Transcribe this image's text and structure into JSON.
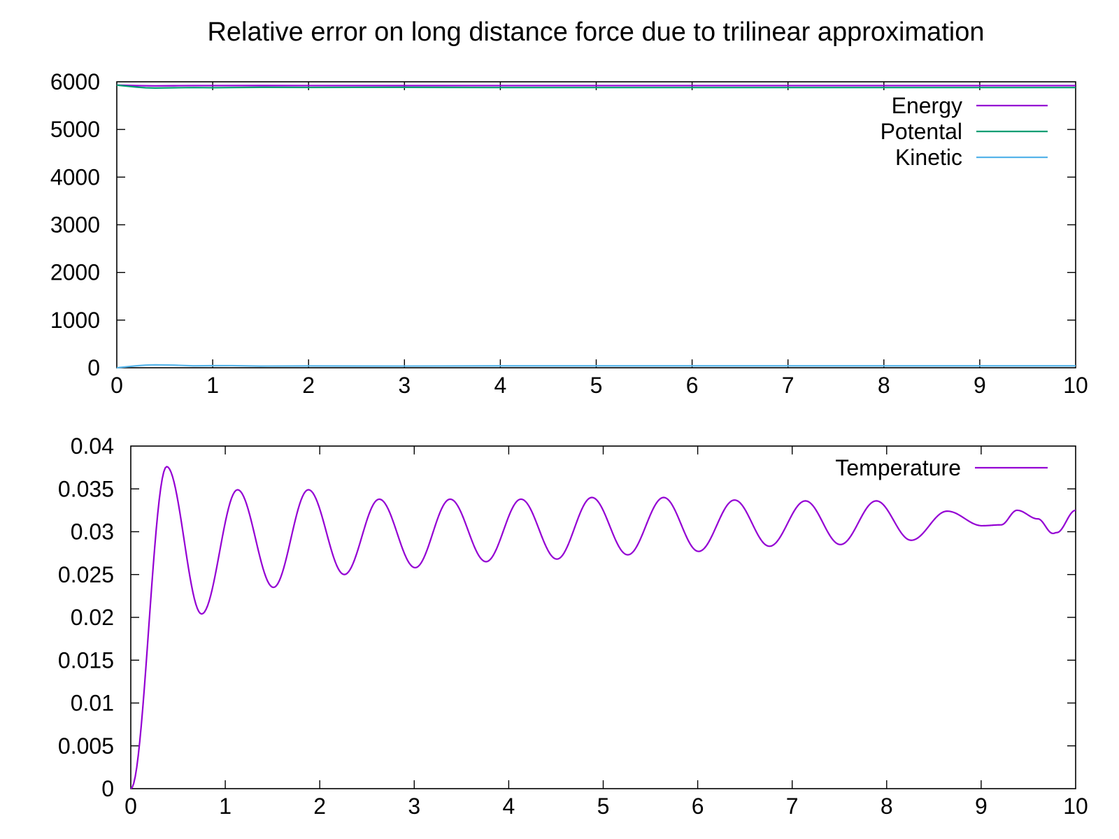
{
  "chart_data": [
    {
      "type": "line",
      "title": "Relative error on long distance force due to trilinear approximation",
      "xlabel": "",
      "ylabel": "",
      "xlim": [
        0,
        10
      ],
      "ylim": [
        0,
        6000
      ],
      "xticks": [
        0,
        1,
        2,
        3,
        4,
        5,
        6,
        7,
        8,
        9,
        10
      ],
      "yticks": [
        0,
        1000,
        2000,
        3000,
        4000,
        5000,
        6000
      ],
      "legend_position": "top-right",
      "grid": false,
      "series": [
        {
          "name": "Energy",
          "color": "#9400d3",
          "x": [
            0,
            0.2,
            0.4,
            0.6,
            0.8,
            1,
            1.5,
            2,
            3,
            4,
            5,
            6,
            7,
            8,
            9,
            10
          ],
          "y": [
            5930,
            5920,
            5915,
            5918,
            5920,
            5920,
            5921,
            5920,
            5920,
            5920,
            5920,
            5920,
            5920,
            5920,
            5920,
            5920
          ]
        },
        {
          "name": "Potental",
          "color": "#009e73",
          "x": [
            0,
            0.1,
            0.2,
            0.3,
            0.4,
            0.6,
            0.8,
            1,
            1.2,
            1.5,
            2,
            3,
            4,
            5,
            6,
            7,
            8,
            9,
            10
          ],
          "y": [
            5930,
            5910,
            5890,
            5875,
            5870,
            5875,
            5880,
            5876,
            5880,
            5885,
            5882,
            5885,
            5880,
            5880,
            5880,
            5880,
            5880,
            5880,
            5880
          ]
        },
        {
          "name": "Kinetic",
          "color": "#56b4e9",
          "x": [
            0,
            0.1,
            0.2,
            0.3,
            0.4,
            0.6,
            0.8,
            1,
            1.2,
            1.5,
            2,
            3,
            4,
            5,
            6,
            7,
            8,
            9,
            10
          ],
          "y": [
            0,
            20,
            40,
            55,
            60,
            55,
            40,
            44,
            45,
            35,
            38,
            36,
            40,
            40,
            40,
            40,
            40,
            40,
            40
          ]
        }
      ]
    },
    {
      "type": "line",
      "title": "",
      "xlabel": "",
      "ylabel": "",
      "xlim": [
        0,
        10
      ],
      "ylim": [
        0,
        0.04
      ],
      "xticks": [
        0,
        1,
        2,
        3,
        4,
        5,
        6,
        7,
        8,
        9,
        10
      ],
      "yticks": [
        0,
        0.005,
        0.01,
        0.015,
        0.02,
        0.025,
        0.03,
        0.035,
        0.04
      ],
      "legend_position": "top-right",
      "grid": false,
      "series": [
        {
          "name": "Temperature",
          "color": "#9400d3",
          "x": [
            0,
            0.38,
            0.75,
            1.13,
            1.51,
            1.88,
            2.26,
            2.63,
            3.01,
            3.38,
            3.76,
            4.13,
            4.51,
            4.88,
            5.26,
            5.64,
            6.01,
            6.39,
            6.76,
            7.14,
            7.51,
            7.89,
            8.26,
            8.64,
            9.01,
            9.21,
            9.38,
            9.6,
            9.76,
            9.8,
            10
          ],
          "y": [
            0,
            0.0376,
            0.0204,
            0.0349,
            0.0235,
            0.0349,
            0.025,
            0.0338,
            0.0258,
            0.0338,
            0.0265,
            0.0338,
            0.0268,
            0.034,
            0.0273,
            0.034,
            0.0277,
            0.0337,
            0.0283,
            0.0336,
            0.0285,
            0.0336,
            0.029,
            0.0324,
            0.0307,
            0.0308,
            0.0325,
            0.0315,
            0.0298,
            0.0299,
            0.0325
          ]
        }
      ]
    }
  ]
}
